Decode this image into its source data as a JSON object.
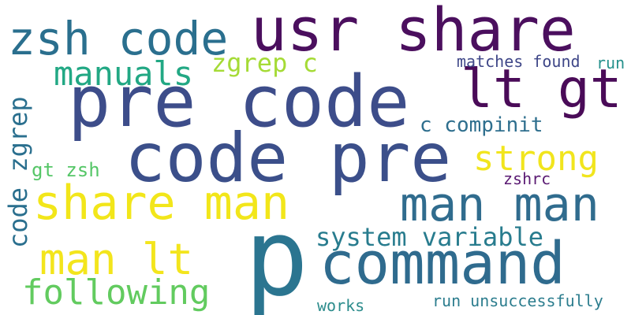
{
  "words": [
    {
      "text": "usr share",
      "color": "#4b0f5e"
    },
    {
      "text": "zsh code",
      "color": "#2a6f8e"
    },
    {
      "text": "pre code",
      "color": "#3d4d8a"
    },
    {
      "text": "lt gt",
      "color": "#4a0b58"
    },
    {
      "text": "code pre",
      "color": "#3b4f8a"
    },
    {
      "text": "p",
      "color": "#2b7590"
    },
    {
      "text": "command",
      "color": "#2f6b8e"
    },
    {
      "text": "share man",
      "color": "#f2e61a"
    },
    {
      "text": "man man",
      "color": "#306c8e"
    },
    {
      "text": "man lt",
      "color": "#f3e51c"
    },
    {
      "text": "manuals",
      "color": "#22a884"
    },
    {
      "text": "zgrep c",
      "color": "#a5db36"
    },
    {
      "text": "matches found",
      "color": "#3f4788"
    },
    {
      "text": "run",
      "color": "#25918c"
    },
    {
      "text": "c compinit",
      "color": "#2f6f8e"
    },
    {
      "text": "strong",
      "color": "#f1e51d"
    },
    {
      "text": "gt zsh",
      "color": "#55c667"
    },
    {
      "text": "zshrc",
      "color": "#5a1a72"
    },
    {
      "text": "system variable",
      "color": "#287c8e"
    },
    {
      "text": "following",
      "color": "#62cb5f"
    },
    {
      "text": "works",
      "color": "#2c8c8c"
    },
    {
      "text": "run unsuccessfully",
      "color": "#2c7d8e"
    },
    {
      "text": "code zgrep",
      "color": "#2a6f8e"
    }
  ]
}
